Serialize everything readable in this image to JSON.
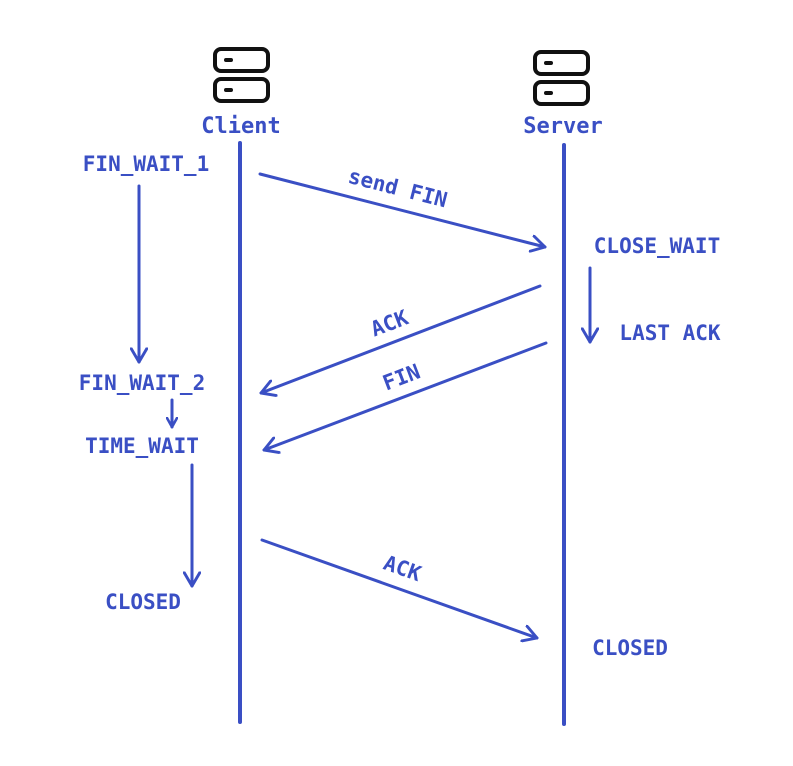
{
  "diagram": {
    "colors": {
      "line": "#3a4fc4",
      "text": "#3a4fc4",
      "icon": "#111111"
    },
    "icons": {
      "client": "server-icon",
      "server": "server-icon"
    },
    "client_label": "Client",
    "server_label": "Server",
    "client_states": {
      "fin_wait_1": "FIN_WAIT_1",
      "fin_wait_2": "FIN_WAIT_2",
      "time_wait": "TIME_WAIT",
      "closed": "CLOSED"
    },
    "server_states": {
      "close_wait": "CLOSE_WAIT",
      "last_ack": "LAST ACK",
      "closed": "CLOSED"
    },
    "messages": {
      "send_fin": "send FIN",
      "ack_1": "ACK",
      "fin": "FIN",
      "ack_2": "ACK"
    }
  }
}
